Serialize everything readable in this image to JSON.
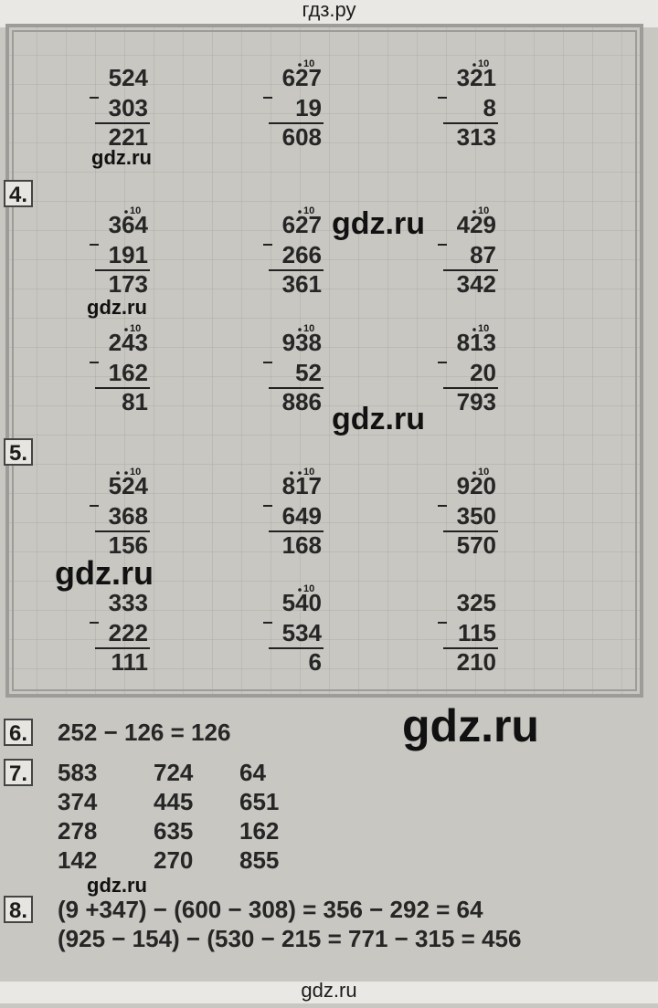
{
  "header": "гдз.ру",
  "column_rows": [
    [
      {
        "top": "524",
        "bottom": "303",
        "result": "221"
      },
      {
        "top": "627",
        "bottom": "19",
        "result": "608",
        "mark": "10"
      },
      {
        "top": "321",
        "bottom": "8",
        "result": "313",
        "mark": "10"
      }
    ],
    [
      {
        "top": "364",
        "bottom": "191",
        "result": "173",
        "mark": "10"
      },
      {
        "top": "627",
        "bottom": "266",
        "result": "361",
        "mark": "10"
      },
      {
        "top": "429",
        "bottom": "87",
        "result": "342",
        "mark": "10"
      }
    ],
    [
      {
        "top": "243",
        "bottom": "162",
        "result": "81",
        "mark": "10"
      },
      {
        "top": "938",
        "bottom": "52",
        "result": "886",
        "mark": "10"
      },
      {
        "top": "813",
        "bottom": "20",
        "result": "793",
        "mark": "10"
      }
    ],
    [
      {
        "top": "524",
        "bottom": "368",
        "result": "156",
        "mark": "10"
      },
      {
        "top": "817",
        "bottom": "649",
        "result": "168",
        "mark": "10"
      },
      {
        "top": "920",
        "bottom": "350",
        "result": "570",
        "mark": "10"
      }
    ],
    [
      {
        "top": "333",
        "bottom": "222",
        "result": "111"
      },
      {
        "top": "540",
        "bottom": "534",
        "result": "6",
        "mark": "10"
      },
      {
        "top": "325",
        "bottom": "115",
        "result": "210"
      }
    ]
  ],
  "section_labels": [
    "4.",
    "5."
  ],
  "task6": {
    "label": "6.",
    "text": "252 − 126 = 126"
  },
  "task7": {
    "label": "7.",
    "grid": [
      [
        "583",
        "724",
        "64"
      ],
      [
        "374",
        "445",
        "651"
      ],
      [
        "278",
        "635",
        "162"
      ],
      [
        "142",
        "270",
        "855"
      ]
    ]
  },
  "task8": {
    "label": "8.",
    "lines": [
      "(9 +347) − (600 − 308) = 356 − 292 = 64",
      "(925 − 154) − (530 − 215 = 771 − 315 = 456"
    ]
  },
  "watermarks": [
    "gdz.ru",
    "gdz.ru",
    "gdz.ru",
    "gdz.ru",
    "gdz.ru",
    "gdz.ru",
    "gdz.ru"
  ],
  "footer": "gdz.ru"
}
